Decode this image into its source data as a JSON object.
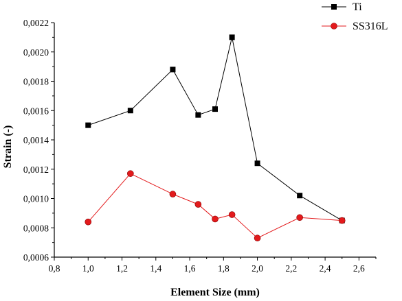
{
  "chart_data": {
    "type": "line",
    "xlabel": "Element Size (mm)",
    "ylabel": "Strain (-)",
    "xlim": [
      0.8,
      2.7
    ],
    "ylim": [
      0.0006,
      0.0022
    ],
    "x_ticks": [
      0.8,
      1.0,
      1.2,
      1.4,
      1.6,
      1.8,
      2.0,
      2.2,
      2.4,
      2.6
    ],
    "x_tick_labels": [
      "0,8",
      "1,0",
      "1,2",
      "1,4",
      "1,6",
      "1,8",
      "2,0",
      "2,2",
      "2,4",
      "2,6"
    ],
    "y_ticks": [
      0.0006,
      0.0008,
      0.001,
      0.0012,
      0.0014,
      0.0016,
      0.0018,
      0.002,
      0.0022
    ],
    "y_tick_labels": [
      "0,0006",
      "0,0008",
      "0,0010",
      "0,0012",
      "0,0014",
      "0,0016",
      "0,0018",
      "0,0020",
      "0,0022"
    ],
    "grid": false,
    "legend_position": "top-right",
    "series": [
      {
        "name": "Ti",
        "marker": "square",
        "color": "#000000",
        "x": [
          1.0,
          1.25,
          1.5,
          1.65,
          1.75,
          1.85,
          2.0,
          2.25,
          2.5
        ],
        "y": [
          0.0015,
          0.0016,
          0.00188,
          0.00157,
          0.00161,
          0.0021,
          0.00124,
          0.00102,
          0.00085
        ]
      },
      {
        "name": "SS316L",
        "marker": "circle",
        "color": "#e31a1c",
        "x": [
          1.0,
          1.25,
          1.5,
          1.65,
          1.75,
          1.85,
          2.0,
          2.25,
          2.5
        ],
        "y": [
          0.00084,
          0.00117,
          0.00103,
          0.00096,
          0.00086,
          0.00089,
          0.00073,
          0.00087,
          0.00085
        ]
      }
    ]
  }
}
